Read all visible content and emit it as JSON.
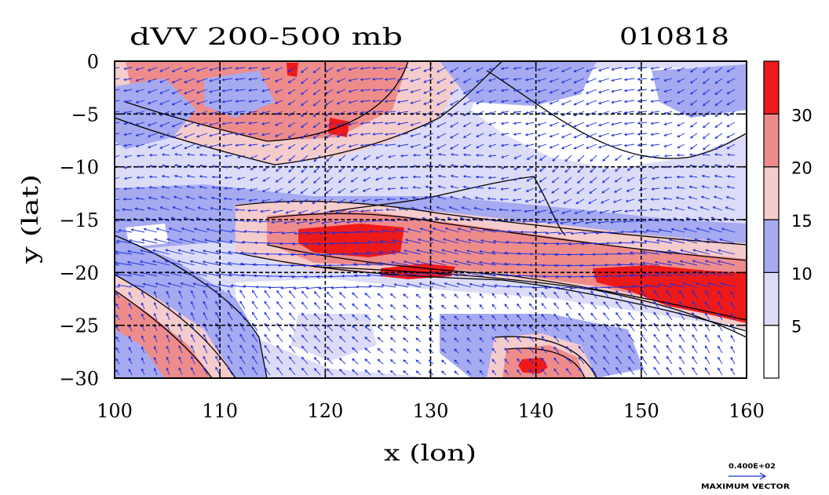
{
  "chart_data": {
    "type": "heatmap",
    "title": "dVV 200-500 mb",
    "date_label": "010818",
    "xlabel": "x (lon)",
    "ylabel": "y (lat)",
    "xlim": [
      100,
      160
    ],
    "ylim": [
      -30,
      0
    ],
    "x_ticks": [
      100,
      110,
      120,
      130,
      140,
      150,
      160
    ],
    "y_ticks": [
      0,
      -5,
      -10,
      -15,
      -20,
      -25,
      -30
    ],
    "x_tick_labels": [
      "100",
      "110",
      "120",
      "130",
      "140",
      "150",
      "160"
    ],
    "y_tick_labels": [
      "0",
      "−5",
      "−10",
      "−15",
      "−20",
      "−25",
      "−30"
    ],
    "gridlines_x": [
      110,
      120,
      130,
      140,
      150
    ],
    "gridlines_y": [
      -5,
      -10,
      -15,
      -20,
      -25
    ],
    "colorbar": {
      "levels": [
        0,
        5,
        10,
        15,
        20,
        30,
        40
      ],
      "labels": [
        "5",
        "10",
        "15",
        "20",
        "30"
      ],
      "colors": [
        "#ffffff",
        "#dcdcf8",
        "#a6aaf0",
        "#f5cccc",
        "#ee8c8c",
        "#ee1a1a"
      ]
    },
    "features": [
      {
        "name": "southern jet core A",
        "lon": [
          117,
          125
        ],
        "lat": [
          -18,
          -16
        ],
        "value_class": 30
      },
      {
        "name": "southern jet core B",
        "lon": [
          126,
          132
        ],
        "lat": [
          -20.5,
          -19.5
        ],
        "value_class": 30
      },
      {
        "name": "eastern jet core",
        "lon": [
          146,
          160
        ],
        "lat": [
          -23.5,
          -19.5
        ],
        "value_class": 30
      },
      {
        "name": "south-west strong band",
        "lon": [
          100,
          110
        ],
        "lat": [
          -30,
          -21
        ],
        "value_class": 20
      },
      {
        "name": "southern cell",
        "lon": [
          136,
          145
        ],
        "lat": [
          -30,
          -27
        ],
        "value_class": 30
      },
      {
        "name": "northern strong region",
        "lon": [
          110,
          127
        ],
        "lat": [
          -10,
          0
        ],
        "value_class": 20
      }
    ],
    "vector_field": "wind vectors (blue arrows) over whole domain",
    "reference_vector": {
      "value_label": "0.400E+02",
      "caption": "MAXIMUM VECTOR"
    },
    "vector_color": "#1a2ee0"
  }
}
